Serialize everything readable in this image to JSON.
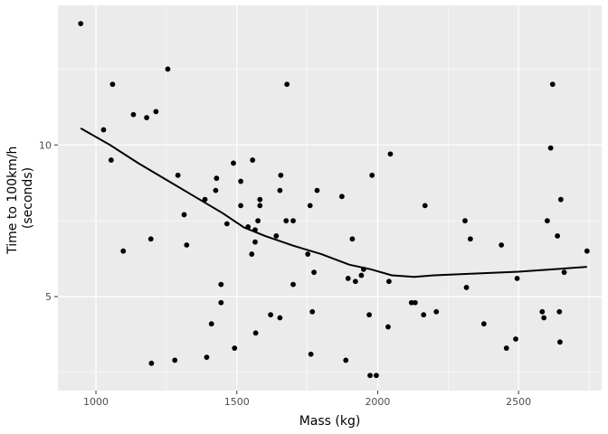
{
  "chart_data": {
    "type": "scatter",
    "xlabel": "Mass (kg)",
    "ylabel": [
      "Time to 100km/h",
      "(seconds)"
    ],
    "xlim": [
      865,
      2795
    ],
    "ylim": [
      1.9,
      14.6
    ],
    "x_ticks": [
      1000,
      1500,
      2000,
      2500
    ],
    "y_ticks": [
      5,
      10
    ],
    "x_tick_labels": [
      "1000",
      "1500",
      "2000",
      "2500"
    ],
    "y_tick_labels": [
      "5",
      "10"
    ],
    "grid": true,
    "background": "#ebebeb",
    "grid_color": "#ffffff",
    "point_color": "#000000",
    "series": [
      {
        "kind": "points",
        "points": [
          [
            946,
            14.0
          ],
          [
            1027,
            10.5
          ],
          [
            1054,
            9.5
          ],
          [
            1059,
            12.0
          ],
          [
            1097,
            6.5
          ],
          [
            1133,
            11.0
          ],
          [
            1180,
            10.9
          ],
          [
            1195,
            6.9
          ],
          [
            1197,
            2.8
          ],
          [
            1213,
            11.1
          ],
          [
            1255,
            12.5
          ],
          [
            1280,
            2.9
          ],
          [
            1291,
            9.0
          ],
          [
            1313,
            7.7
          ],
          [
            1322,
            6.7
          ],
          [
            1387,
            8.2
          ],
          [
            1393,
            3.0
          ],
          [
            1410,
            4.1
          ],
          [
            1425,
            8.5
          ],
          [
            1428,
            8.9
          ],
          [
            1444,
            5.4
          ],
          [
            1444,
            4.8
          ],
          [
            1465,
            7.4
          ],
          [
            1488,
            9.4
          ],
          [
            1492,
            3.3
          ],
          [
            1514,
            8.0
          ],
          [
            1514,
            8.8
          ],
          [
            1540,
            7.3
          ],
          [
            1553,
            6.4
          ],
          [
            1556,
            9.5
          ],
          [
            1565,
            6.8
          ],
          [
            1565,
            7.2
          ],
          [
            1567,
            3.8
          ],
          [
            1575,
            7.5
          ],
          [
            1582,
            8.2
          ],
          [
            1582,
            8.0
          ],
          [
            1620,
            4.4
          ],
          [
            1640,
            7.0
          ],
          [
            1653,
            8.5
          ],
          [
            1653,
            4.3
          ],
          [
            1656,
            9.0
          ],
          [
            1675,
            7.5
          ],
          [
            1678,
            12.0
          ],
          [
            1700,
            7.5
          ],
          [
            1700,
            5.4
          ],
          [
            1752,
            6.4
          ],
          [
            1760,
            8.0
          ],
          [
            1763,
            3.1
          ],
          [
            1768,
            4.5
          ],
          [
            1774,
            5.8
          ],
          [
            1785,
            8.5
          ],
          [
            1873,
            8.3
          ],
          [
            1887,
            2.9
          ],
          [
            1895,
            5.6
          ],
          [
            1910,
            6.9
          ],
          [
            1921,
            5.5
          ],
          [
            1942,
            5.7
          ],
          [
            1950,
            5.9
          ],
          [
            1970,
            4.4
          ],
          [
            1973,
            2.4
          ],
          [
            1980,
            9.0
          ],
          [
            1995,
            2.4
          ],
          [
            2037,
            4.0
          ],
          [
            2040,
            5.5
          ],
          [
            2045,
            9.7
          ],
          [
            2120,
            4.8
          ],
          [
            2133,
            4.8
          ],
          [
            2163,
            4.4
          ],
          [
            2168,
            8.0
          ],
          [
            2208,
            4.5
          ],
          [
            2310,
            7.5
          ],
          [
            2315,
            5.3
          ],
          [
            2329,
            6.9
          ],
          [
            2377,
            4.1
          ],
          [
            2439,
            6.7
          ],
          [
            2457,
            3.3
          ],
          [
            2490,
            3.6
          ],
          [
            2495,
            5.6
          ],
          [
            2584,
            4.5
          ],
          [
            2590,
            4.3
          ],
          [
            2602,
            7.5
          ],
          [
            2614,
            9.9
          ],
          [
            2621,
            12.0
          ],
          [
            2638,
            7.0
          ],
          [
            2645,
            4.5
          ],
          [
            2647,
            3.5
          ],
          [
            2650,
            8.2
          ],
          [
            2662,
            5.8
          ],
          [
            2743,
            6.5
          ]
        ]
      },
      {
        "kind": "smooth_line",
        "points": [
          [
            946,
            10.55
          ],
          [
            1050,
            10.0
          ],
          [
            1150,
            9.4
          ],
          [
            1250,
            8.85
          ],
          [
            1350,
            8.3
          ],
          [
            1450,
            7.75
          ],
          [
            1525,
            7.28
          ],
          [
            1600,
            7.0
          ],
          [
            1700,
            6.68
          ],
          [
            1800,
            6.4
          ],
          [
            1900,
            6.05
          ],
          [
            1975,
            5.9
          ],
          [
            2050,
            5.7
          ],
          [
            2130,
            5.65
          ],
          [
            2200,
            5.7
          ],
          [
            2350,
            5.76
          ],
          [
            2500,
            5.82
          ],
          [
            2650,
            5.92
          ],
          [
            2743,
            5.98
          ]
        ]
      }
    ]
  }
}
